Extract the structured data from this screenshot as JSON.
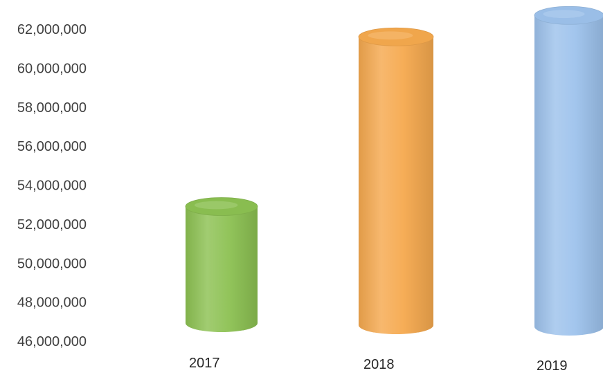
{
  "chart_data": {
    "type": "bar",
    "style": "3d-cylinder",
    "categories": [
      "2017",
      "2018",
      "2019"
    ],
    "values": [
      52900000,
      61600000,
      62700000
    ],
    "colors": [
      "#8cc152",
      "#f5a94e",
      "#9dc2ec"
    ],
    "yticks": [
      "46,000,000",
      "48,000,000",
      "50,000,000",
      "52,000,000",
      "54,000,000",
      "56,000,000",
      "58,000,000",
      "60,000,000",
      "62,000,000"
    ],
    "ylim": [
      46000000,
      62000000
    ],
    "grid": false,
    "legend": "none",
    "title": "",
    "xlabel": "",
    "ylabel": ""
  }
}
